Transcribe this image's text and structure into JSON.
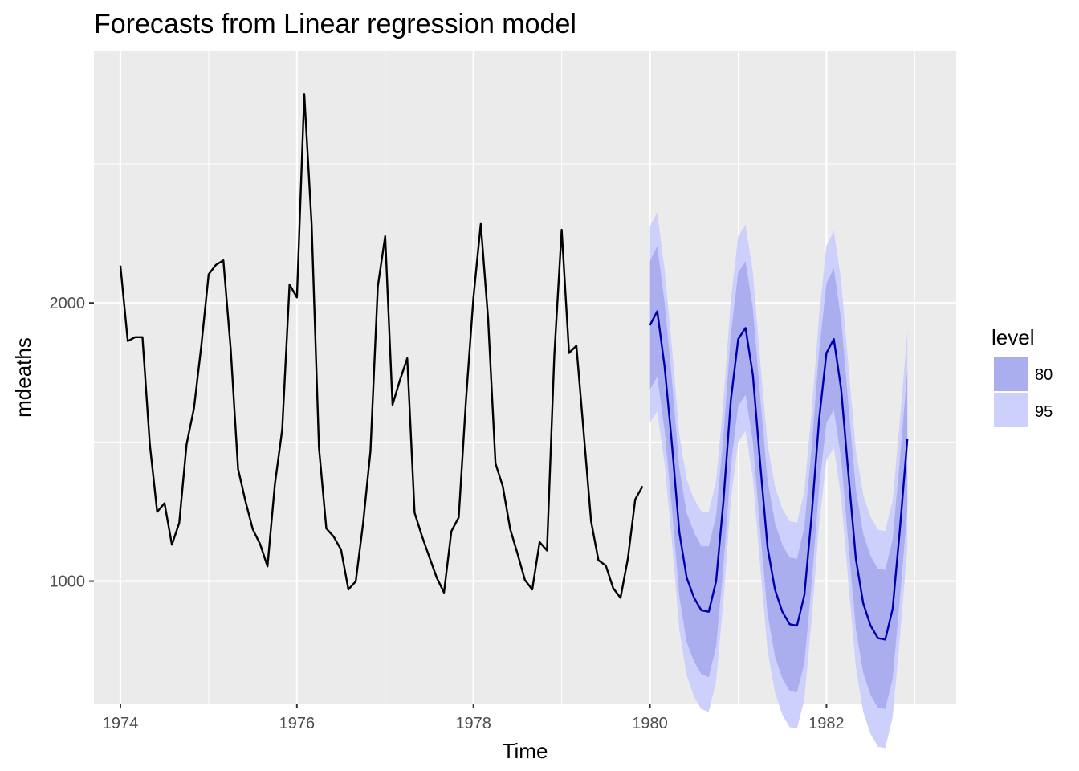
{
  "chart_data": {
    "type": "line",
    "title": "Forecasts from Linear regression model",
    "xlabel": "Time",
    "ylabel": "mdeaths",
    "xlim": [
      1973.7,
      1983.47
    ],
    "ylim": [
      560,
      2907
    ],
    "x_ticks": [
      1974,
      1976,
      1978,
      1980,
      1982
    ],
    "y_ticks": [
      1000,
      2000
    ],
    "x_tick_labels": [
      "1974",
      "1976",
      "1978",
      "1980",
      "1982"
    ],
    "y_tick_labels": [
      "1000",
      "2000"
    ],
    "grid": true,
    "legend_position": "right",
    "legend": {
      "title": "level",
      "items": [
        {
          "label": "80",
          "color": "#aaaeee"
        },
        {
          "label": "95",
          "color": "#cdd0fb"
        }
      ]
    },
    "colors": {
      "panel": "#ebebeb",
      "grid_major": "#ffffff",
      "history_line": "#000000",
      "forecast_line": "#0000aa",
      "band_80": "#aaaeee",
      "band_95": "#cdd0fb"
    },
    "series": [
      {
        "role": "history",
        "start": 1974,
        "step": 0.0833333,
        "values": [
          2134,
          1863,
          1877,
          1877,
          1492,
          1249,
          1280,
          1131,
          1209,
          1492,
          1621,
          1846,
          2103,
          2137,
          2153,
          1833,
          1403,
          1288,
          1186,
          1133,
          1053,
          1347,
          1545,
          2066,
          2020,
          2750,
          2283,
          1479,
          1189,
          1160,
          1113,
          970,
          999,
          1208,
          1467,
          2059,
          2240,
          1634,
          1722,
          1801,
          1246,
          1162,
          1087,
          1013,
          959,
          1179,
          1229,
          1655,
          2019,
          2284,
          1942,
          1423,
          1340,
          1187,
          1098,
          1004,
          970,
          1140,
          1110,
          1812,
          2263,
          1820,
          1846,
          1531,
          1215,
          1075,
          1056,
          975,
          940,
          1081,
          1294,
          1341
        ]
      },
      {
        "role": "forecast",
        "start": 1980,
        "step": 0.0833333,
        "values": [
          1920,
          1970,
          1770,
          1490,
          1175,
          1012,
          940,
          895,
          890,
          1000,
          1290,
          1650,
          1870,
          1910,
          1740,
          1420,
          1120,
          970,
          890,
          845,
          840,
          950,
          1240,
          1580,
          1820,
          1870,
          1690,
          1380,
          1080,
          920,
          840,
          795,
          790,
          900,
          1190,
          1510
        ],
        "lo80": [
          1690,
          1735,
          1540,
          1260,
          945,
          780,
          710,
          665,
          655,
          765,
          1055,
          1415,
          1630,
          1670,
          1500,
          1180,
          880,
          730,
          650,
          605,
          600,
          705,
          995,
          1335,
          1570,
          1615,
          1440,
          1130,
          830,
          670,
          590,
          545,
          540,
          650,
          940,
          1260
        ],
        "hi80": [
          2150,
          2205,
          2000,
          1720,
          1405,
          1245,
          1175,
          1125,
          1125,
          1235,
          1525,
          1885,
          2110,
          2150,
          1980,
          1660,
          1360,
          1210,
          1130,
          1085,
          1080,
          1195,
          1485,
          1825,
          2070,
          2125,
          1940,
          1630,
          1330,
          1170,
          1090,
          1045,
          1040,
          1150,
          1440,
          1760
        ],
        "lo95": [
          1570,
          1610,
          1420,
          1140,
          825,
          660,
          585,
          540,
          530,
          640,
          930,
          1290,
          1500,
          1540,
          1370,
          1050,
          750,
          600,
          520,
          475,
          470,
          575,
          865,
          1205,
          1435,
          1480,
          1300,
          990,
          690,
          530,
          450,
          405,
          400,
          510,
          800,
          1120
        ],
        "hi95": [
          2275,
          2325,
          2120,
          1840,
          1525,
          1365,
          1295,
          1250,
          1250,
          1360,
          1650,
          2010,
          2240,
          2280,
          2110,
          1790,
          1490,
          1340,
          1260,
          1215,
          1210,
          1325,
          1615,
          1955,
          2205,
          2260,
          2080,
          1770,
          1470,
          1310,
          1230,
          1185,
          1180,
          1290,
          1580,
          1900
        ]
      }
    ]
  }
}
